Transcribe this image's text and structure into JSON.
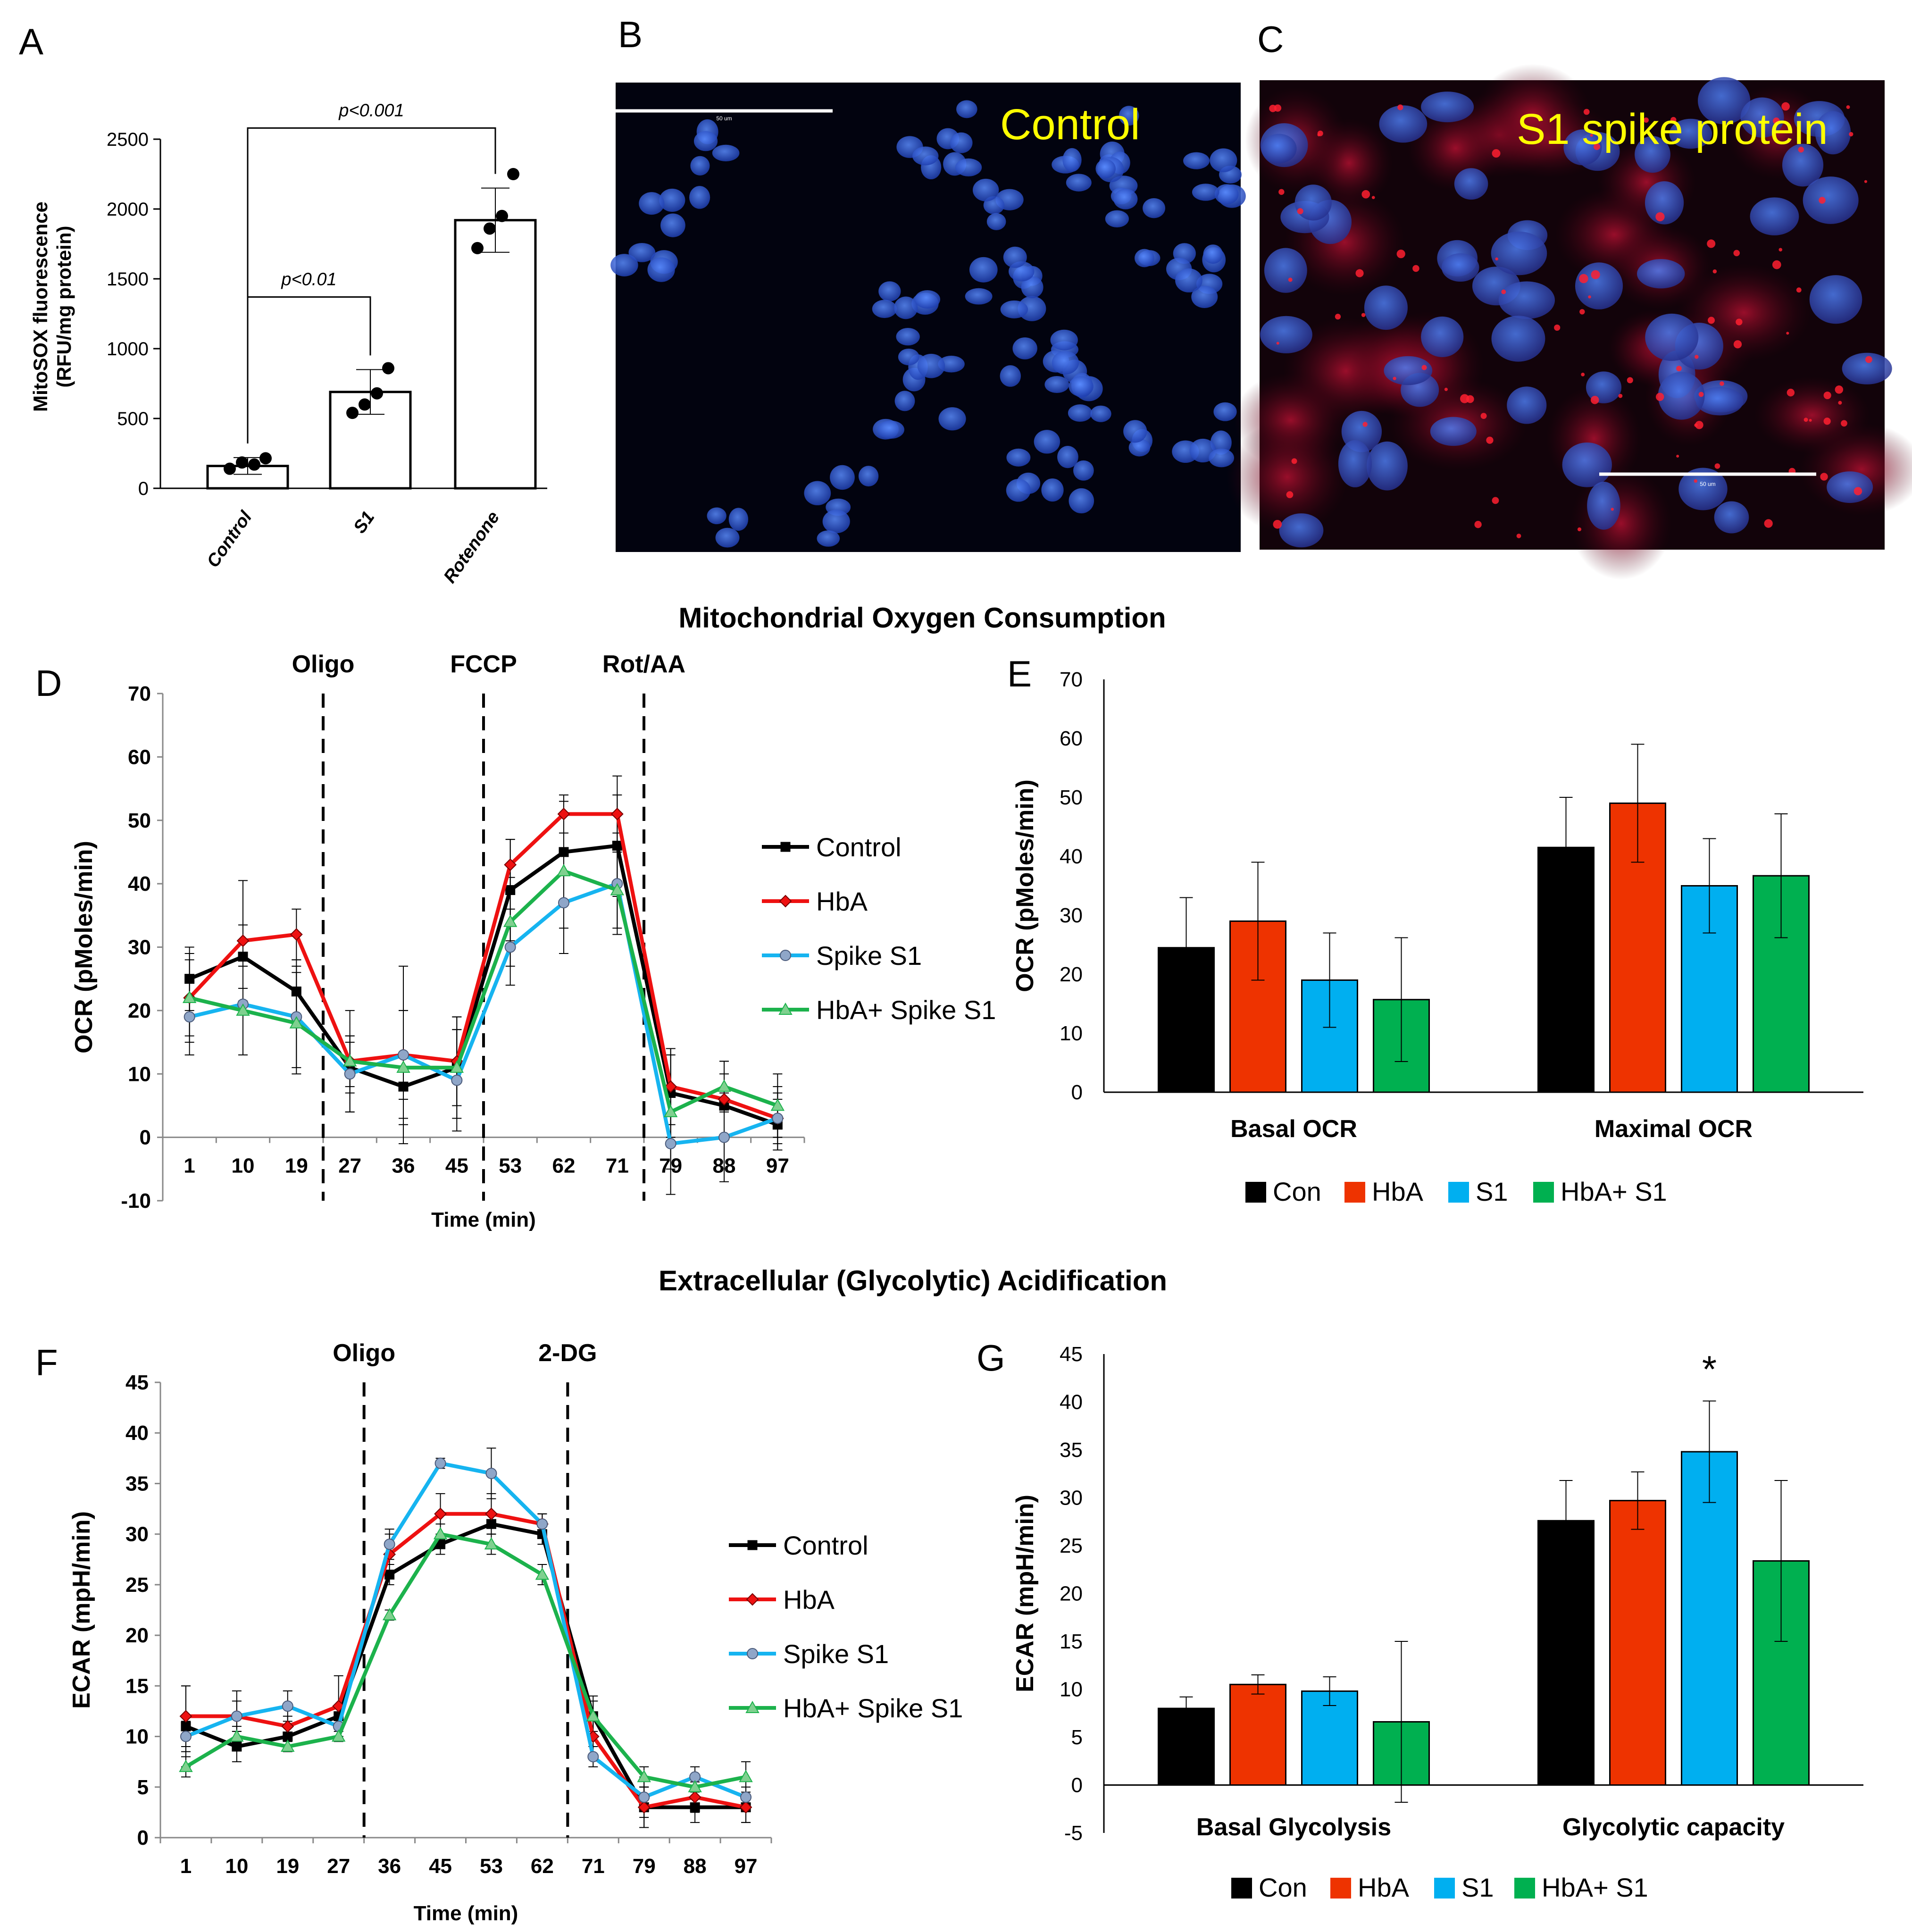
{
  "colors": {
    "control": "#000000",
    "hba": "#ee1111",
    "spike": "#16b4f0",
    "hba_spike": "#1cb24c",
    "bar_con": "#000000",
    "bar_hba": "#ee3300",
    "bar_s1": "#00aff0",
    "bar_hba_s1": "#00b050",
    "micro_text": "#ffff00",
    "nuclei": "#2a5ce0"
  },
  "panel_letters": {
    "a": "A",
    "b": "B",
    "c": "C",
    "d": "D",
    "e": "E",
    "f": "F",
    "g": "G"
  },
  "section_titles": {
    "ocr": "Mitochondrial Oxygen Consumption",
    "ecar": "Extracellular (Glycolytic) Acidification"
  },
  "micrographs": {
    "b_label": "Control",
    "c_label": "S1 spike protein",
    "scale_text": "50 um"
  },
  "chart_data": [
    {
      "id": "A",
      "type": "bar",
      "ylabel_line1": "MitoSOX fluorescence",
      "ylabel_line2": "(RFU/mg protein)",
      "categories": [
        "Control",
        "S1",
        "Rotenone"
      ],
      "values": [
        160,
        690,
        1920
      ],
      "errors": [
        60,
        160,
        230
      ],
      "points": [
        [
          140,
          185,
          170,
          215
        ],
        [
          540,
          600,
          680,
          860
        ],
        [
          1720,
          1860,
          1950,
          2250
        ]
      ],
      "ylim": [
        0,
        2500
      ],
      "yticks": [
        0,
        500,
        1000,
        1500,
        2000,
        2500
      ],
      "annotations": [
        {
          "text": "p<0.01",
          "from": 0,
          "to": 1,
          "y": 1370
        },
        {
          "text": "p<0.001",
          "from": 0,
          "to": 2,
          "y": 2580
        }
      ]
    },
    {
      "id": "D",
      "type": "line",
      "title": "Mitochondrial Oxygen Consumption",
      "xlabel": "Time (min)",
      "ylabel": "OCR (pMoles/min)",
      "x": [
        "1",
        "10",
        "19",
        "27",
        "36",
        "45",
        "53",
        "62",
        "71",
        "79",
        "88",
        "97"
      ],
      "ylim": [
        -10,
        70
      ],
      "yticks": [
        -10,
        0,
        10,
        20,
        30,
        40,
        50,
        60,
        70
      ],
      "injections": [
        {
          "label": "Oligo",
          "after": 2
        },
        {
          "label": "FCCP",
          "after": 5
        },
        {
          "label": "Rot/AA",
          "after": 8
        }
      ],
      "series": [
        {
          "name": "Control",
          "key": "control",
          "marker": "square",
          "values": [
            25,
            28.5,
            23,
            11,
            8,
            11,
            39,
            45,
            46,
            7,
            5,
            2
          ],
          "errors": [
            5,
            5,
            5,
            4,
            5,
            6,
            8,
            8,
            8,
            7,
            5,
            4
          ]
        },
        {
          "name": "HbA",
          "key": "hba",
          "marker": "diamond",
          "values": [
            22,
            31,
            32,
            12,
            13,
            12,
            43,
            51,
            51,
            8,
            6,
            3
          ],
          "errors": [
            6,
            9.5,
            4,
            4,
            14,
            7,
            4,
            3,
            6,
            6,
            6,
            4
          ]
        },
        {
          "name": "Spike S1",
          "key": "spike",
          "marker": "circle",
          "values": [
            19,
            21,
            19,
            10,
            13,
            9,
            30,
            37,
            40,
            -1,
            0,
            3
          ],
          "errors": [
            6,
            8,
            8,
            6,
            7,
            8,
            6,
            8,
            8,
            8,
            7,
            5
          ]
        },
        {
          "name": "HbA+ Spike S1",
          "key": "hba_spike",
          "marker": "triangle",
          "values": [
            22,
            20,
            18,
            12,
            11,
            11,
            34,
            42,
            39,
            4,
            8,
            5
          ],
          "errors": [
            7,
            7,
            8,
            8,
            9,
            8,
            7,
            9,
            6,
            9,
            4,
            5
          ]
        }
      ]
    },
    {
      "id": "E",
      "type": "bar",
      "ylabel": "OCR (pMoles/min)",
      "categories": [
        "Basal OCR",
        "Maximal OCR"
      ],
      "ylim": [
        0,
        70
      ],
      "yticks": [
        0,
        10,
        20,
        30,
        40,
        50,
        60,
        70
      ],
      "series": [
        {
          "name": "Con",
          "key": "bar_con",
          "values": [
            24.5,
            41.5
          ],
          "errors": [
            8.5,
            8.5
          ]
        },
        {
          "name": "HbA",
          "key": "bar_hba",
          "values": [
            29,
            49
          ],
          "errors": [
            10,
            10
          ]
        },
        {
          "name": "S1",
          "key": "bar_s1",
          "values": [
            19,
            35
          ],
          "errors": [
            8,
            8
          ]
        },
        {
          "name": "HbA+ S1",
          "key": "bar_hba_s1",
          "values": [
            15.7,
            36.7
          ],
          "errors": [
            10.5,
            10.5
          ]
        }
      ]
    },
    {
      "id": "F",
      "type": "line",
      "title": "Extracellular (Glycolytic) Acidification",
      "xlabel": "Time (min)",
      "ylabel": "ECAR (mpH/min)",
      "x": [
        "1",
        "10",
        "19",
        "27",
        "36",
        "45",
        "53",
        "62",
        "71",
        "79",
        "88",
        "97"
      ],
      "ylim": [
        0,
        45
      ],
      "yticks": [
        0,
        5,
        10,
        15,
        20,
        25,
        30,
        35,
        40,
        45
      ],
      "injections": [
        {
          "label": "Oligo",
          "after": 3
        },
        {
          "label": "2-DG",
          "after": 7
        }
      ],
      "series": [
        {
          "name": "Control",
          "key": "control",
          "marker": "square",
          "values": [
            11,
            9,
            10,
            12,
            26,
            29,
            31,
            30,
            12,
            3,
            3,
            3
          ],
          "errors": [
            4,
            1.5,
            1,
            1,
            1,
            1,
            1,
            1,
            2,
            2,
            1.5,
            1.5
          ]
        },
        {
          "name": "HbA",
          "key": "hba",
          "marker": "diamond",
          "values": [
            12,
            12,
            11,
            13,
            28,
            32,
            32,
            31,
            10,
            3,
            4,
            3
          ],
          "errors": [
            3,
            1.5,
            1,
            3,
            2,
            2,
            2,
            1,
            2,
            2,
            1.5,
            1.5
          ]
        },
        {
          "name": "Spike S1",
          "key": "spike",
          "marker": "circle",
          "values": [
            10,
            12,
            13,
            11,
            29,
            37,
            36,
            31,
            8,
            4,
            6,
            4
          ],
          "errors": [
            1.5,
            2.5,
            1.5,
            1,
            1.5,
            0.5,
            2.5,
            1,
            1,
            2,
            1,
            1
          ]
        },
        {
          "name": "HbA+ Spike S1",
          "key": "hba_spike",
          "marker": "triangle",
          "values": [
            7,
            10,
            9,
            10,
            22,
            30,
            29,
            26,
            12,
            6,
            5,
            6
          ],
          "errors": [
            1,
            1,
            0.5,
            0.5,
            0.5,
            1,
            1,
            1,
            1.5,
            1,
            1,
            1.5
          ]
        }
      ]
    },
    {
      "id": "G",
      "type": "bar",
      "ylabel": "ECAR (mpH/min)",
      "categories": [
        "Basal Glycolysis",
        "Glycolytic capacity"
      ],
      "ylim": [
        -5,
        45
      ],
      "yticks": [
        -5,
        0,
        5,
        10,
        15,
        20,
        25,
        30,
        35,
        40,
        45
      ],
      "significance": "*",
      "series": [
        {
          "name": "Con",
          "key": "bar_con",
          "values": [
            8,
            27.6
          ],
          "errors": [
            1.2,
            4.2
          ]
        },
        {
          "name": "HbA",
          "key": "bar_hba",
          "values": [
            10.5,
            29.7
          ],
          "errors": [
            1,
            3
          ]
        },
        {
          "name": "S1",
          "key": "bar_s1",
          "values": [
            9.8,
            34.8
          ],
          "errors": [
            1.5,
            5.3
          ]
        },
        {
          "name": "HbA+ S1",
          "key": "bar_hba_s1",
          "values": [
            6.6,
            23.4
          ],
          "errors": [
            8.4,
            8.4
          ]
        }
      ]
    }
  ]
}
